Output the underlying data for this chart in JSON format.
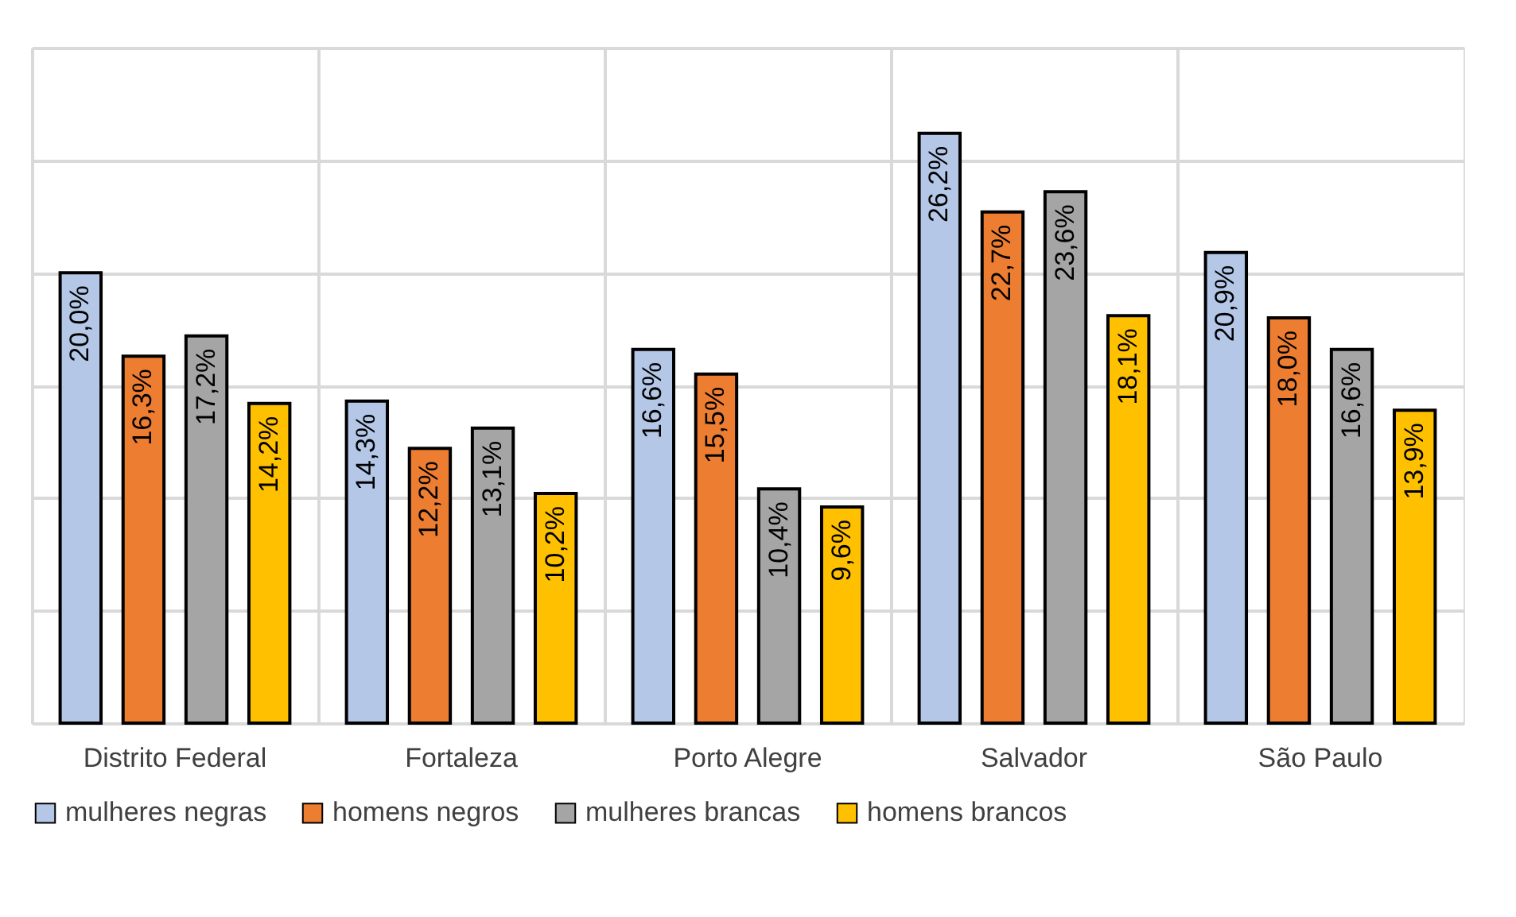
{
  "chart_data": {
    "type": "bar",
    "categories": [
      "Distrito Federal",
      "Fortaleza",
      "Porto Alegre",
      "Salvador",
      "São Paulo"
    ],
    "series": [
      {
        "name": "mulheres negras",
        "color": "#b4c7e7",
        "values": [
          20.0,
          14.3,
          16.6,
          26.2,
          20.9
        ],
        "value_labels": [
          "20,0%",
          "14,3%",
          "16,6%",
          "26,2%",
          "20,9%"
        ]
      },
      {
        "name": "homens negros",
        "color": "#ed7d31",
        "values": [
          16.3,
          12.2,
          15.5,
          22.7,
          18.0
        ],
        "value_labels": [
          "16,3%",
          "12,2%",
          "15,5%",
          "22,7%",
          "18,0%"
        ]
      },
      {
        "name": "mulheres brancas",
        "color": "#a5a5a5",
        "values": [
          17.2,
          13.1,
          10.4,
          23.6,
          16.6
        ],
        "value_labels": [
          "17,2%",
          "13,1%",
          "10,4%",
          "23,6%",
          "16,6%"
        ]
      },
      {
        "name": "homens brancos",
        "color": "#ffc000",
        "values": [
          14.2,
          10.2,
          9.6,
          18.1,
          13.9
        ],
        "value_labels": [
          "14,2%",
          "10,2%",
          "9,6%",
          "18,1%",
          "13,9%"
        ]
      }
    ],
    "ylim": [
      0,
      30
    ],
    "yticks": [
      {
        "value": 0,
        "label": null
      },
      {
        "value": 5,
        "label": null
      },
      {
        "value": 10,
        "label": null
      },
      {
        "value": 15,
        "label": null
      },
      {
        "value": 20,
        "label": null
      },
      {
        "value": 25,
        "label": null
      },
      {
        "value": 30,
        "label": null
      }
    ],
    "tick_labels": "x",
    "grid": true,
    "legend": "bottom"
  }
}
